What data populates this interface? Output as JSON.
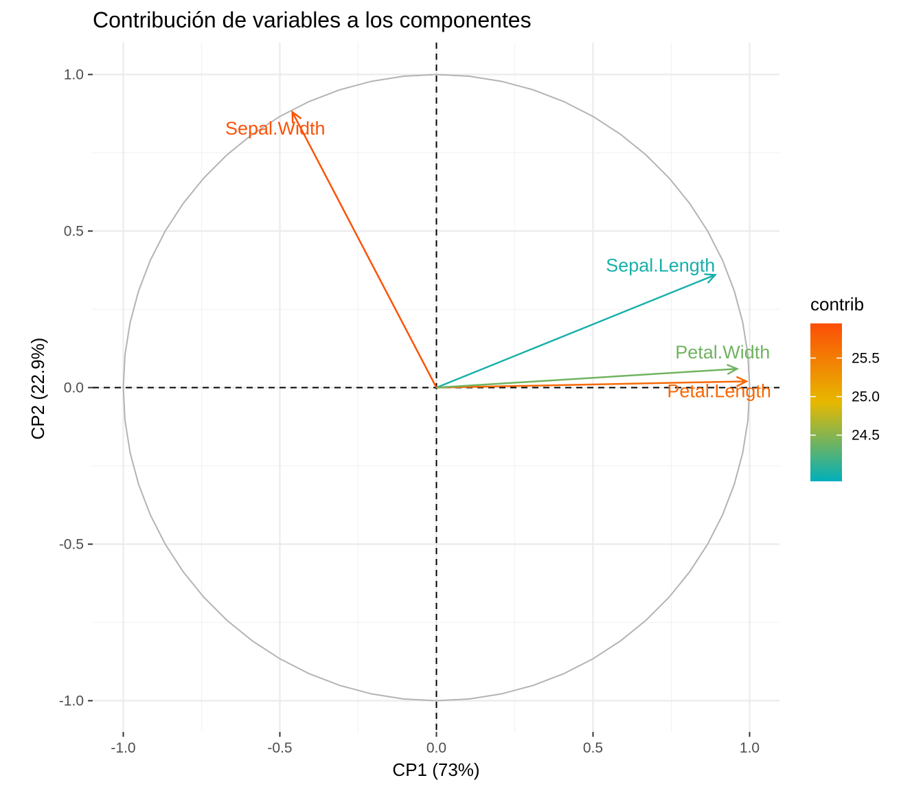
{
  "chart_data": {
    "type": "scatter",
    "subtype": "pca-variable-correlation-circle",
    "title": "Contribución de variables a los componentes",
    "xlabel": "CP1 (73%)",
    "ylabel": "CP2 (22.9%)",
    "xlim": [
      -1.0,
      1.0
    ],
    "ylim": [
      -1.0,
      1.0
    ],
    "x_ticks": [
      -1.0,
      -0.5,
      0.0,
      0.5,
      1.0
    ],
    "y_ticks": [
      -1.0,
      -0.5,
      0.0,
      0.5,
      1.0
    ],
    "x_tick_labels": [
      "-1.0",
      "-0.5",
      "0.0",
      "0.5",
      "1.0"
    ],
    "y_tick_labels": [
      "-1.0",
      "-0.5",
      "0.0",
      "0.5",
      "1.0"
    ],
    "grid": true,
    "unit_circle": true,
    "reference_lines": [
      {
        "axis": "x",
        "value": 0.0
      },
      {
        "axis": "y",
        "value": 0.0
      }
    ],
    "variables": [
      {
        "name": "Sepal.Length",
        "x": 0.89,
        "y": 0.36,
        "contrib": 24.0
      },
      {
        "name": "Sepal.Width",
        "x": -0.46,
        "y": 0.88,
        "contrib": 25.9
      },
      {
        "name": "Petal.Length",
        "x": 0.99,
        "y": 0.02,
        "contrib": 25.7
      },
      {
        "name": "Petal.Width",
        "x": 0.96,
        "y": 0.06,
        "contrib": 24.4
      }
    ],
    "legend": {
      "title": "contrib",
      "position": "right",
      "min": 23.9,
      "max": 25.95,
      "ticks": [
        25.5,
        25.0,
        24.5
      ],
      "tick_labels": [
        "25.5",
        "25.0",
        "24.5"
      ],
      "colors": [
        "#00AFBB",
        "#E7B800",
        "#FC4E07"
      ]
    }
  }
}
